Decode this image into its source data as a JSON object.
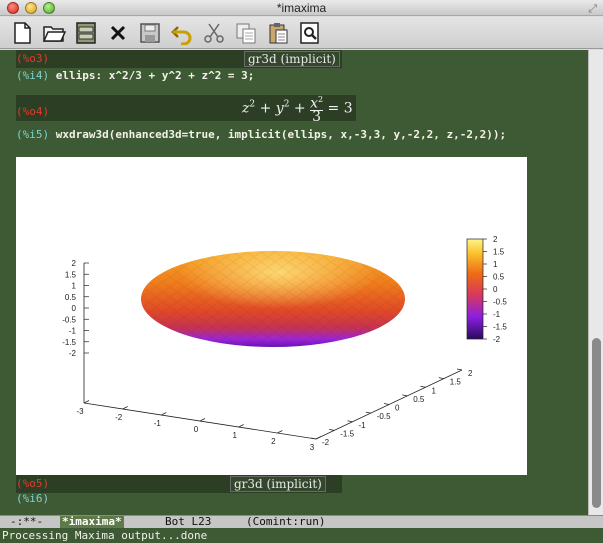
{
  "window": {
    "title": "*imaxima"
  },
  "cells": {
    "o3_label": "(%o3)",
    "o3_result": "gr3d (implicit)",
    "i4_label": "(%i4)",
    "i4_input": "ellips: x^2/3 + y^2 + z^2 = 3;",
    "o4_label": "(%o4)",
    "i5_label": "(%i5)",
    "i5_input": "wxdraw3d(enhanced3d=true, implicit(ellips, x,-3,3, y,-2,2, z,-2,2));",
    "o5_label": "(%o5)",
    "o5_result": "gr3d (implicit)",
    "i6_label": "(%i6)"
  },
  "formula": {
    "z": "z",
    "y": "y",
    "x": "x",
    "two": "2",
    "three": "3",
    "rhs": "3"
  },
  "chart_data": {
    "type": "surface3d",
    "surface": "implicit ellipsoid x^2/3 + y^2 + z^2 = 3",
    "x_ticks": [
      "-3",
      "-2",
      "-1",
      "0",
      "1",
      "2",
      "3"
    ],
    "y_ticks": [
      "-2",
      "-1.5",
      "-1",
      "-0.5",
      "0",
      "0.5",
      "1",
      "1.5",
      "2"
    ],
    "z_ticks": [
      "2",
      "1.5",
      "1",
      "0.5",
      "0",
      "-0.5",
      "-1",
      "-1.5",
      "-2"
    ],
    "colorbar_ticks": [
      "2",
      "1.5",
      "1",
      "0.5",
      "0",
      "-0.5",
      "-1",
      "-1.5",
      "-2"
    ],
    "colorbar_range": [
      -2,
      2
    ],
    "palette": [
      "#2a0a5e",
      "#8a1fe0",
      "#d93a5a",
      "#ee6a18",
      "#fbbf2a",
      "#fff58a"
    ],
    "xlim": [
      -3,
      3
    ],
    "ylim": [
      -2,
      2
    ],
    "zlim": [
      -2,
      2
    ]
  },
  "modeline": {
    "status": "-:**-",
    "buffer": "*imaxima*",
    "position": "Bot L23",
    "mode": "(Comint:run)"
  },
  "echo": {
    "message": "Processing Maxima output...done"
  }
}
